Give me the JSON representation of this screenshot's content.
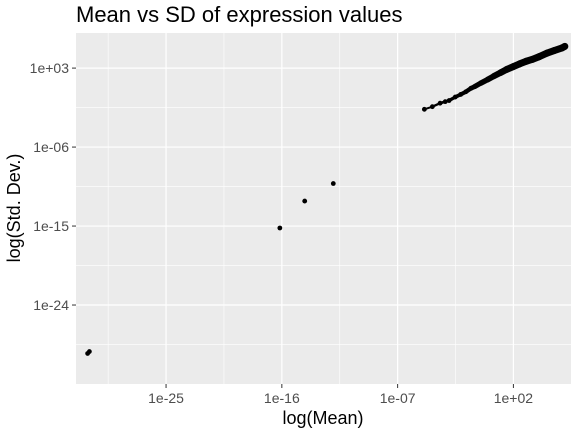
{
  "chart_data": {
    "type": "scatter",
    "title": "Mean vs SD of expression values",
    "xlabel": "log(Mean)",
    "ylabel": "log(Std. Dev.)",
    "x_scale": "log10",
    "y_scale": "log10",
    "xlim": [
      "1e-32",
      "3e+06"
    ],
    "ylim": [
      "1e-33",
      "1e+07"
    ],
    "x_ticks": [
      {
        "label": "1e-25",
        "value": 1e-25
      },
      {
        "label": "1e-16",
        "value": 1e-16
      },
      {
        "label": "1e-07",
        "value": 1e-07
      },
      {
        "label": "1e+02",
        "value": 100
      }
    ],
    "y_ticks": [
      {
        "label": "1e+03",
        "value": 1000
      },
      {
        "label": "1e-06",
        "value": 1e-06
      },
      {
        "label": "1e-15",
        "value": 1e-15
      },
      {
        "label": "1e-24",
        "value": 1e-24
      }
    ],
    "grid": true,
    "background": "#ebebeb",
    "grid_color": "#ffffff",
    "point_color": "#000000",
    "points": [
      {
        "x": 8e-32,
        "y": 3e-30
      },
      {
        "x": 1.1e-31,
        "y": 5e-30
      },
      {
        "x": 7e-17,
        "y": 6e-16
      },
      {
        "x": 6e-15,
        "y": 7e-13
      },
      {
        "x": 1e-12,
        "y": 7e-11
      },
      {
        "x": 1.2e-05,
        "y": 0.02
      },
      {
        "x": 5e-05,
        "y": 0.04
      },
      {
        "x": 0.0002,
        "y": 0.1
      },
      {
        "x": 0.0005,
        "y": 0.15
      },
      {
        "x": 0.001,
        "y": 0.2
      },
      {
        "x": 0.003,
        "y": 0.5
      },
      {
        "x": 0.008,
        "y": 1
      },
      {
        "x": 0.02,
        "y": 2
      },
      {
        "x": 0.05,
        "y": 5
      },
      {
        "x": 0.1,
        "y": 8
      },
      {
        "x": 0.3,
        "y": 20
      },
      {
        "x": 1,
        "y": 50
      },
      {
        "x": 3,
        "y": 120
      },
      {
        "x": 10,
        "y": 300
      },
      {
        "x": 30,
        "y": 700
      },
      {
        "x": 100,
        "y": 1500
      },
      {
        "x": 300,
        "y": 3000
      },
      {
        "x": 1000,
        "y": 6000
      },
      {
        "x": 3000,
        "y": 10000
      },
      {
        "x": 10000,
        "y": 20000
      },
      {
        "x": 40000,
        "y": 50000
      },
      {
        "x": 150000,
        "y": 100000
      },
      {
        "x": 600000,
        "y": 200000
      },
      {
        "x": 1000000,
        "y": 300000
      }
    ]
  }
}
